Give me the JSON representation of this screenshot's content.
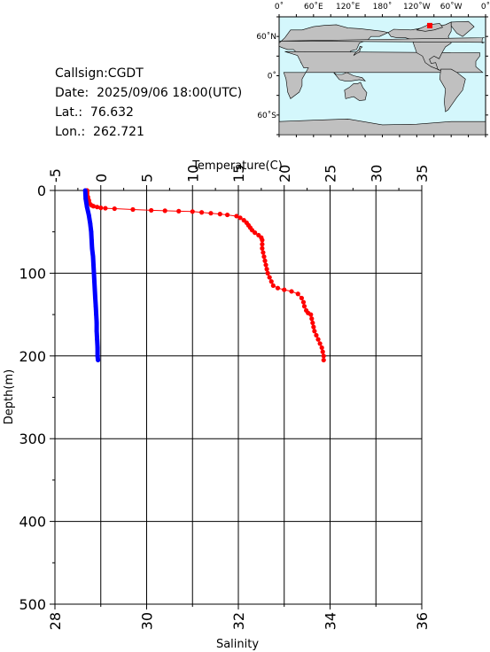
{
  "info": {
    "callsign": "Callsign:CGDT",
    "date": "Date:  2025/09/06 18:00(UTC)",
    "lat": "Lat.:  76.632",
    "lon": "Lon.:  262.721"
  },
  "map": {
    "top_labels": [
      "0˚",
      "60˚E",
      "120˚E",
      "180˚",
      "120˚W",
      "60˚W",
      "0˚"
    ],
    "left_labels": [
      "60˚N",
      "0˚",
      "60˚S"
    ],
    "ocean_color": "#d4f7fc",
    "land_color": "#c0c0c0",
    "marker": {
      "lat": 76.632,
      "lon": 262.721,
      "color": "#ff0000"
    }
  },
  "chart_data": {
    "type": "line",
    "top_axis": {
      "label": "Temperature(C)",
      "range": [
        -5,
        35
      ],
      "ticks": [
        "-5",
        "0",
        "5",
        "10",
        "15",
        "20",
        "25",
        "30",
        "35"
      ]
    },
    "bottom_axis": {
      "label": "Salinity",
      "range": [
        28,
        36
      ],
      "ticks": [
        "28",
        "30",
        "32",
        "34",
        "36"
      ]
    },
    "y_axis": {
      "label": "Depth(m)",
      "range": [
        0,
        500
      ],
      "inverted": true,
      "ticks": [
        "0",
        "100",
        "200",
        "300",
        "400",
        "500"
      ]
    },
    "grid": true,
    "series": [
      {
        "axis": "temperature",
        "color": "#ff0000",
        "points": [
          [
            -1.5,
            0
          ],
          [
            -1.5,
            2
          ],
          [
            -1.5,
            4
          ],
          [
            -1.5,
            6
          ],
          [
            -1.4,
            8
          ],
          [
            -1.4,
            10
          ],
          [
            -1.3,
            12
          ],
          [
            -1.3,
            14
          ],
          [
            -1.2,
            16
          ],
          [
            -1.0,
            18
          ],
          [
            -0.8,
            19
          ],
          [
            -0.4,
            20
          ],
          [
            0.0,
            21
          ],
          [
            0.5,
            21.5
          ],
          [
            1.5,
            22
          ],
          [
            3.5,
            23
          ],
          [
            5.5,
            24
          ],
          [
            7.0,
            24.5
          ],
          [
            8.5,
            25
          ],
          [
            10.0,
            25.5
          ],
          [
            11.0,
            26.5
          ],
          [
            12.0,
            27.5
          ],
          [
            13.0,
            28.5
          ],
          [
            13.8,
            29.5
          ],
          [
            14.8,
            31
          ],
          [
            15.2,
            33
          ],
          [
            15.6,
            36
          ],
          [
            15.9,
            39
          ],
          [
            16.1,
            42
          ],
          [
            16.3,
            45
          ],
          [
            16.5,
            48
          ],
          [
            16.8,
            51
          ],
          [
            17.2,
            54
          ],
          [
            17.5,
            57
          ],
          [
            17.6,
            60
          ],
          [
            17.6,
            65
          ],
          [
            17.6,
            70
          ],
          [
            17.7,
            75
          ],
          [
            17.8,
            80
          ],
          [
            17.9,
            85
          ],
          [
            18.0,
            90
          ],
          [
            18.1,
            95
          ],
          [
            18.2,
            100
          ],
          [
            18.4,
            105
          ],
          [
            18.6,
            110
          ],
          [
            18.8,
            115
          ],
          [
            19.3,
            118
          ],
          [
            20.0,
            120
          ],
          [
            20.8,
            122
          ],
          [
            21.5,
            125
          ],
          [
            21.9,
            130
          ],
          [
            22.1,
            135
          ],
          [
            22.2,
            140
          ],
          [
            22.4,
            145
          ],
          [
            22.6,
            148
          ],
          [
            22.9,
            150
          ],
          [
            23.0,
            155
          ],
          [
            23.1,
            160
          ],
          [
            23.2,
            165
          ],
          [
            23.3,
            170
          ],
          [
            23.5,
            175
          ],
          [
            23.7,
            180
          ],
          [
            23.9,
            185
          ],
          [
            24.1,
            190
          ],
          [
            24.2,
            195
          ],
          [
            24.3,
            200
          ],
          [
            24.3,
            205
          ]
        ]
      },
      {
        "axis": "salinity",
        "color": "#0000ff",
        "points": [
          [
            28.66,
            0
          ],
          [
            28.67,
            10
          ],
          [
            28.7,
            20
          ],
          [
            28.74,
            30
          ],
          [
            28.77,
            40
          ],
          [
            28.79,
            50
          ],
          [
            28.8,
            60
          ],
          [
            28.81,
            70
          ],
          [
            28.83,
            80
          ],
          [
            28.84,
            90
          ],
          [
            28.85,
            100
          ],
          [
            28.86,
            110
          ],
          [
            28.87,
            120
          ],
          [
            28.88,
            130
          ],
          [
            28.89,
            140
          ],
          [
            28.9,
            150
          ],
          [
            28.91,
            160
          ],
          [
            28.91,
            170
          ],
          [
            28.92,
            180
          ],
          [
            28.93,
            190
          ],
          [
            28.93,
            200
          ],
          [
            28.94,
            205
          ]
        ]
      }
    ]
  }
}
